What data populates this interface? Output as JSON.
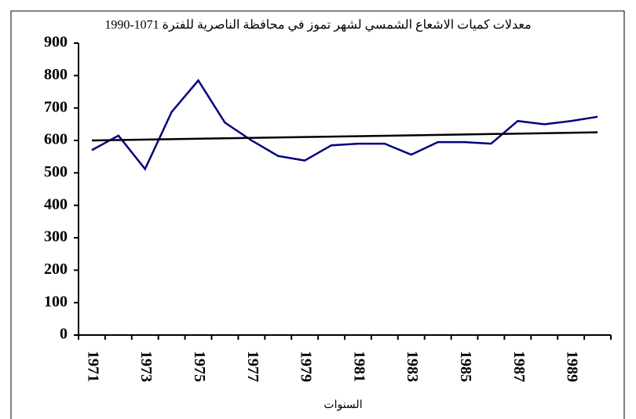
{
  "chart_data": {
    "type": "line",
    "title": "معدلات كميات الاشعاع الشمسي لشهر تموز في محافظة الناصرية للفترة 1071-1990",
    "x_label": "السنوات",
    "categories": [
      "1971",
      null,
      "1973",
      null,
      "1975",
      null,
      "1977",
      null,
      "1979",
      null,
      "1981",
      null,
      "1983",
      null,
      "1985",
      null,
      "1987",
      null,
      "1989",
      null
    ],
    "series": [
      {
        "name": "الاشعاع الشمسي",
        "color": "#000080",
        "values": [
          570,
          615,
          512,
          688,
          785,
          655,
          600,
          552,
          538,
          585,
          590,
          590,
          556,
          595,
          595,
          590,
          660,
          650,
          660,
          673
        ]
      }
    ],
    "trendline": {
      "color": "#000000",
      "values": [
        600,
        625
      ]
    },
    "ylim": [
      0,
      900
    ],
    "yticks": [
      0,
      100,
      200,
      300,
      400,
      500,
      600,
      700,
      800,
      900
    ]
  }
}
